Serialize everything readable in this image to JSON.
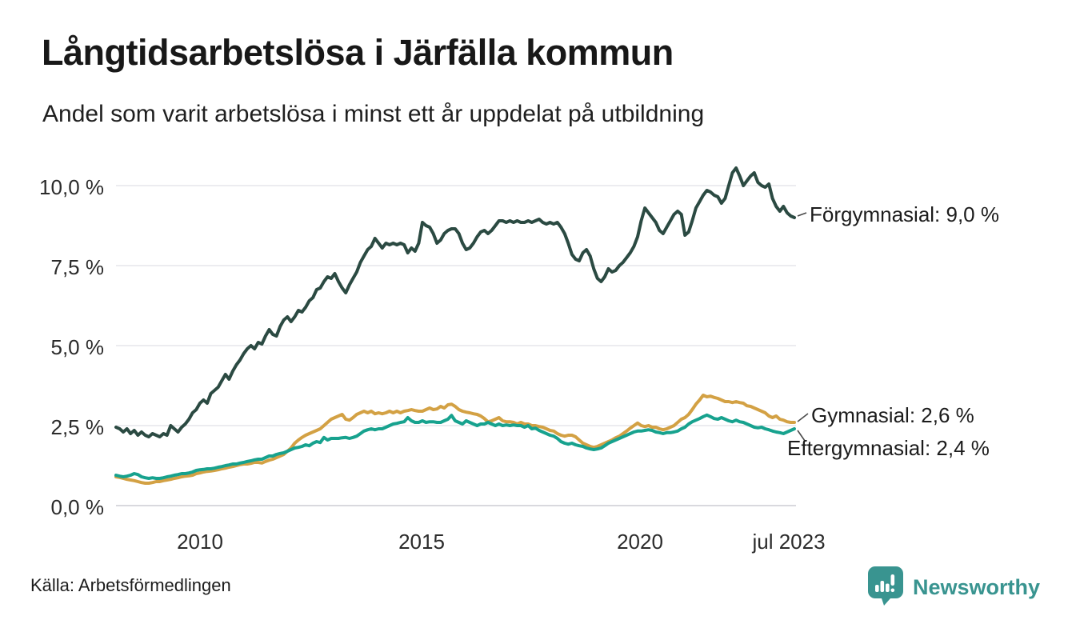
{
  "header": {
    "title": "Långtidsarbetslösa i Järfälla kommun",
    "subtitle": "Andel som varit arbetslösa i minst ett år uppdelat på utbildning"
  },
  "footer": {
    "source": "Källa: Arbetsförmedlingen",
    "brand": "Newsworthy"
  },
  "colors": {
    "forgymnasial": "#2b4a42",
    "gymnasial": "#d3a144",
    "eftergymnasial": "#17a28e",
    "gridline": "#ececf0",
    "axis_line": "#d9d9de",
    "brand_teal": "#399490",
    "text": "#1c1c1c"
  },
  "chart_data": {
    "type": "line",
    "title": "Långtidsarbetslösa i Järfälla kommun",
    "subtitle": "Andel som varit arbetslösa i minst ett år uppdelat på utbildning",
    "unit": "%",
    "x_start": "jan 2008",
    "x_end": "jul 2023",
    "x_interval": "monthly",
    "x_ticks": [
      "2010",
      "2015",
      "2020",
      "jul 2023"
    ],
    "y_ticks": [
      "0,0 %",
      "2,5 %",
      "5,0 %",
      "7,5 %",
      "10,0 %"
    ],
    "y_grid": [
      0,
      2.5,
      5,
      7.5,
      10
    ],
    "ylim": [
      0,
      10.6
    ],
    "grid": "horizontal",
    "legend_position": "right-end-labels",
    "series": [
      {
        "name": "Förgymnasial",
        "end_label": "Förgymnasial: 9,0 %",
        "end_value": 9.0,
        "color": "#2b4a42",
        "values": [
          2.45,
          2.4,
          2.3,
          2.4,
          2.25,
          2.35,
          2.2,
          2.3,
          2.2,
          2.15,
          2.25,
          2.2,
          2.15,
          2.25,
          2.2,
          2.5,
          2.4,
          2.3,
          2.45,
          2.55,
          2.7,
          2.9,
          3.0,
          3.2,
          3.3,
          3.2,
          3.5,
          3.6,
          3.7,
          3.9,
          4.1,
          3.95,
          4.2,
          4.4,
          4.55,
          4.75,
          4.9,
          5.0,
          4.9,
          5.1,
          5.05,
          5.3,
          5.5,
          5.35,
          5.3,
          5.6,
          5.8,
          5.9,
          5.75,
          5.9,
          6.1,
          6.05,
          6.2,
          6.4,
          6.5,
          6.75,
          6.8,
          7.0,
          7.15,
          7.1,
          7.25,
          7.0,
          6.8,
          6.65,
          6.9,
          7.1,
          7.3,
          7.6,
          7.8,
          8.0,
          8.1,
          8.35,
          8.2,
          8.05,
          8.2,
          8.15,
          8.2,
          8.15,
          8.2,
          8.15,
          7.9,
          8.05,
          7.95,
          8.2,
          8.85,
          8.75,
          8.7,
          8.5,
          8.2,
          8.3,
          8.5,
          8.6,
          8.65,
          8.65,
          8.5,
          8.2,
          8.0,
          8.05,
          8.2,
          8.4,
          8.55,
          8.6,
          8.5,
          8.6,
          8.75,
          8.9,
          8.9,
          8.85,
          8.9,
          8.85,
          8.9,
          8.85,
          8.85,
          8.9,
          8.85,
          8.9,
          8.95,
          8.85,
          8.8,
          8.85,
          8.8,
          8.85,
          8.7,
          8.5,
          8.2,
          7.85,
          7.7,
          7.65,
          7.9,
          8.0,
          7.8,
          7.4,
          7.1,
          7.0,
          7.15,
          7.4,
          7.3,
          7.35,
          7.5,
          7.6,
          7.75,
          7.9,
          8.1,
          8.4,
          8.9,
          9.3,
          9.15,
          9.0,
          8.85,
          8.6,
          8.5,
          8.7,
          8.9,
          9.1,
          9.2,
          9.1,
          8.45,
          8.55,
          8.9,
          9.3,
          9.5,
          9.7,
          9.85,
          9.8,
          9.7,
          9.65,
          9.45,
          9.6,
          10.0,
          10.4,
          10.55,
          10.3,
          10.0,
          10.15,
          10.3,
          10.4,
          10.1,
          10.0,
          9.95,
          10.05,
          9.6,
          9.35,
          9.2,
          9.35,
          9.15,
          9.05,
          9.0
        ]
      },
      {
        "name": "Gymnasial",
        "end_label": "Gymnasial: 2,6 %",
        "end_value": 2.6,
        "color": "#d3a144",
        "values": [
          0.9,
          0.88,
          0.85,
          0.82,
          0.8,
          0.78,
          0.75,
          0.72,
          0.7,
          0.7,
          0.72,
          0.75,
          0.75,
          0.78,
          0.8,
          0.82,
          0.85,
          0.87,
          0.9,
          0.92,
          0.93,
          0.95,
          1.0,
          1.02,
          1.05,
          1.07,
          1.08,
          1.1,
          1.12,
          1.15,
          1.17,
          1.2,
          1.22,
          1.25,
          1.28,
          1.3,
          1.3,
          1.32,
          1.35,
          1.35,
          1.33,
          1.38,
          1.42,
          1.45,
          1.5,
          1.55,
          1.6,
          1.7,
          1.8,
          1.95,
          2.05,
          2.13,
          2.2,
          2.25,
          2.3,
          2.35,
          2.4,
          2.5,
          2.6,
          2.7,
          2.75,
          2.8,
          2.85,
          2.7,
          2.67,
          2.75,
          2.85,
          2.9,
          2.95,
          2.9,
          2.95,
          2.87,
          2.9,
          2.87,
          2.9,
          2.95,
          2.9,
          2.95,
          2.9,
          2.95,
          2.97,
          3.0,
          2.97,
          2.95,
          2.95,
          3.0,
          3.05,
          3.0,
          3.02,
          3.1,
          3.05,
          3.15,
          3.17,
          3.1,
          3.0,
          2.95,
          2.92,
          2.9,
          2.87,
          2.85,
          2.8,
          2.72,
          2.62,
          2.65,
          2.7,
          2.75,
          2.65,
          2.62,
          2.62,
          2.6,
          2.55,
          2.6,
          2.55,
          2.55,
          2.5,
          2.5,
          2.47,
          2.45,
          2.4,
          2.35,
          2.33,
          2.25,
          2.2,
          2.17,
          2.2,
          2.2,
          2.15,
          2.05,
          1.95,
          1.9,
          1.85,
          1.82,
          1.85,
          1.9,
          1.95,
          2.0,
          2.05,
          2.12,
          2.17,
          2.25,
          2.33,
          2.42,
          2.5,
          2.58,
          2.5,
          2.47,
          2.5,
          2.45,
          2.45,
          2.4,
          2.37,
          2.4,
          2.45,
          2.5,
          2.6,
          2.7,
          2.75,
          2.85,
          3.0,
          3.17,
          3.3,
          3.45,
          3.4,
          3.42,
          3.38,
          3.35,
          3.3,
          3.25,
          3.25,
          3.22,
          3.25,
          3.22,
          3.2,
          3.12,
          3.1,
          3.05,
          3.0,
          2.95,
          2.9,
          2.8,
          2.75,
          2.8,
          2.7,
          2.67,
          2.62,
          2.6,
          2.6
        ]
      },
      {
        "name": "Eftergymnasial",
        "end_label": "Eftergymnasial: 2,4 %",
        "end_value": 2.4,
        "color": "#17a28e",
        "values": [
          0.95,
          0.92,
          0.9,
          0.92,
          0.95,
          1.0,
          0.97,
          0.9,
          0.87,
          0.85,
          0.87,
          0.85,
          0.85,
          0.87,
          0.9,
          0.92,
          0.95,
          0.97,
          1.0,
          1.0,
          1.02,
          1.05,
          1.1,
          1.12,
          1.13,
          1.15,
          1.15,
          1.17,
          1.2,
          1.22,
          1.25,
          1.27,
          1.3,
          1.3,
          1.33,
          1.35,
          1.38,
          1.4,
          1.43,
          1.45,
          1.45,
          1.5,
          1.55,
          1.55,
          1.6,
          1.63,
          1.65,
          1.7,
          1.75,
          1.8,
          1.82,
          1.85,
          1.9,
          1.87,
          1.95,
          2.0,
          1.97,
          2.13,
          2.05,
          2.1,
          2.1,
          2.1,
          2.12,
          2.13,
          2.1,
          2.13,
          2.17,
          2.25,
          2.33,
          2.37,
          2.4,
          2.37,
          2.4,
          2.4,
          2.45,
          2.5,
          2.55,
          2.57,
          2.6,
          2.62,
          2.75,
          2.65,
          2.6,
          2.6,
          2.65,
          2.6,
          2.62,
          2.62,
          2.6,
          2.6,
          2.65,
          2.7,
          2.82,
          2.65,
          2.6,
          2.55,
          2.65,
          2.6,
          2.55,
          2.5,
          2.55,
          2.55,
          2.6,
          2.55,
          2.5,
          2.55,
          2.5,
          2.52,
          2.5,
          2.52,
          2.5,
          2.5,
          2.45,
          2.5,
          2.4,
          2.42,
          2.35,
          2.3,
          2.25,
          2.2,
          2.17,
          2.1,
          2.0,
          1.95,
          1.92,
          1.95,
          1.9,
          1.87,
          1.85,
          1.8,
          1.77,
          1.75,
          1.77,
          1.8,
          1.87,
          1.95,
          2.0,
          2.05,
          2.1,
          2.15,
          2.2,
          2.25,
          2.3,
          2.33,
          2.33,
          2.35,
          2.37,
          2.35,
          2.3,
          2.28,
          2.25,
          2.28,
          2.28,
          2.3,
          2.33,
          2.4,
          2.45,
          2.55,
          2.62,
          2.67,
          2.72,
          2.78,
          2.83,
          2.78,
          2.72,
          2.7,
          2.75,
          2.7,
          2.65,
          2.62,
          2.67,
          2.62,
          2.6,
          2.55,
          2.5,
          2.45,
          2.43,
          2.45,
          2.4,
          2.37,
          2.33,
          2.3,
          2.28,
          2.25,
          2.3,
          2.35,
          2.4
        ]
      }
    ]
  }
}
